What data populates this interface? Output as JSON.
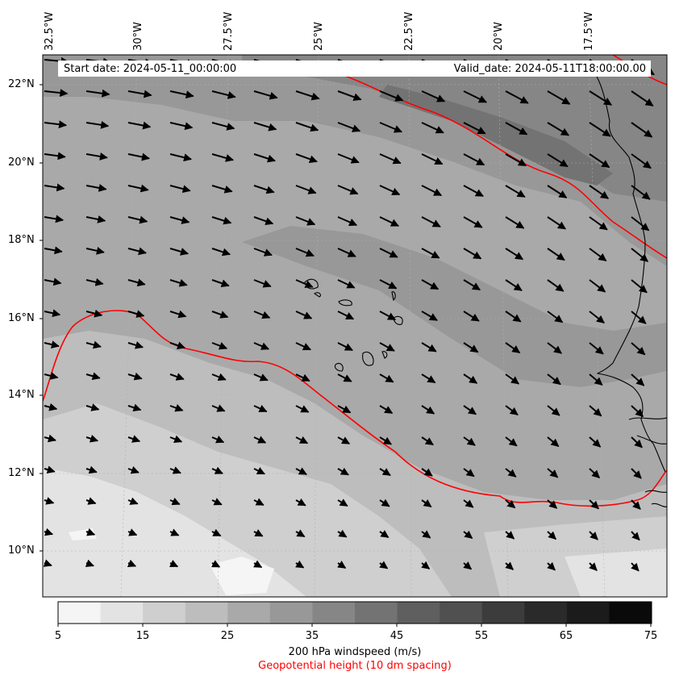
{
  "header": {
    "start_date": "Start date: 2024-05-11_00:00:00",
    "valid_date": "Valid_date: 2024-05-11T18:00:00.00"
  },
  "map": {
    "lat_labels": [
      "22°N",
      "20°N",
      "18°N",
      "16°N",
      "14°N",
      "12°N",
      "10°N"
    ],
    "lon_labels": [
      "32.5°W",
      "30°W",
      "27.5°W",
      "25°W",
      "22.5°W",
      "20°W",
      "17.5°W"
    ],
    "geopotential_contour_color": "#ff0000",
    "coastline_color": "#000000",
    "wind_vectors": "black arrows, mostly pointing east-southeast"
  },
  "colorbar": {
    "ticks": [
      "5",
      "15",
      "25",
      "35",
      "45",
      "55",
      "65",
      "75"
    ],
    "title": "200 hPa windspeed (m/s)",
    "subtitle": "Geopotential height (10 dm spacing)",
    "colors": [
      "#f5f5f5",
      "#e3e3e3",
      "#cfcfcf",
      "#bdbdbd",
      "#a9a9a9",
      "#989898",
      "#868686",
      "#737373",
      "#5f5f5f",
      "#505050",
      "#3c3c3c",
      "#2a2a2a",
      "#1b1b1b",
      "#0a0a0a"
    ],
    "min": 5,
    "max": 75
  }
}
